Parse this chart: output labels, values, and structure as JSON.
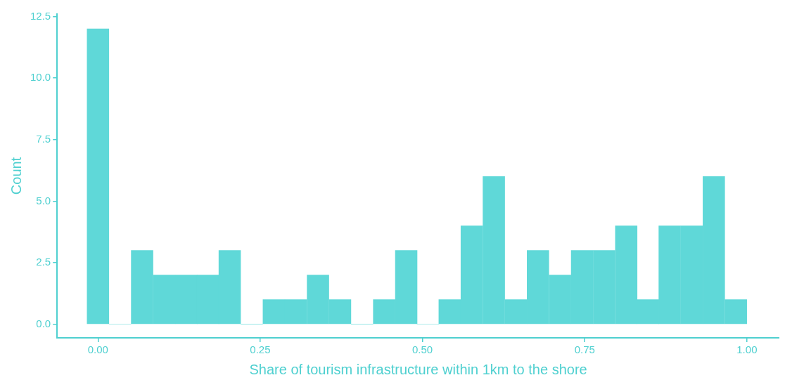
{
  "chart_data": {
    "type": "histogram",
    "xlabel": "Share of tourism infrastructure within 1km to the shore",
    "ylabel": "Count",
    "color": "#5fd8d8",
    "bins": [
      -0.017,
      0.017,
      0.051,
      0.085,
      0.119,
      0.153,
      0.186,
      0.22,
      0.254,
      0.288,
      0.322,
      0.356,
      0.39,
      0.424,
      0.458,
      0.492,
      0.525,
      0.559,
      0.593,
      0.627,
      0.661,
      0.695,
      0.729,
      0.763,
      0.797,
      0.831,
      0.864,
      0.898,
      0.932,
      0.966,
      1.0
    ],
    "values": [
      12,
      0,
      3,
      2,
      2,
      2,
      3,
      0,
      1,
      1,
      2,
      1,
      0,
      1,
      3,
      0,
      1,
      4,
      6,
      1,
      3,
      2,
      3,
      3,
      4,
      1,
      4,
      4,
      6,
      1
    ],
    "xlim": [
      -0.063,
      1.05
    ],
    "ylim": [
      -0.55,
      12.6
    ],
    "xticks": [
      {
        "value": 0,
        "label": "0.00"
      },
      {
        "value": 0.25,
        "label": "0.25"
      },
      {
        "value": 0.5,
        "label": "0.50"
      },
      {
        "value": 0.75,
        "label": "0.75"
      },
      {
        "value": 1,
        "label": "1.00"
      }
    ],
    "yticks": [
      {
        "value": 0,
        "label": "0.0"
      },
      {
        "value": 2.5,
        "label": "2.5"
      },
      {
        "value": 5,
        "label": "5.0"
      },
      {
        "value": 7.5,
        "label": "7.5"
      },
      {
        "value": 10,
        "label": "10.0"
      },
      {
        "value": 12.5,
        "label": "12.5"
      }
    ],
    "grid": false,
    "legend": false
  }
}
